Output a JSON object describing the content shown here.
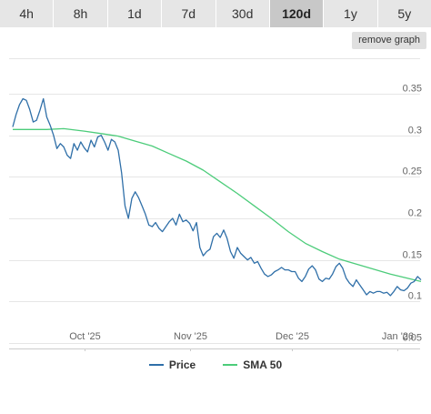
{
  "tabs": [
    {
      "label": "4h",
      "active": false
    },
    {
      "label": "8h",
      "active": false
    },
    {
      "label": "1d",
      "active": false
    },
    {
      "label": "7d",
      "active": false
    },
    {
      "label": "30d",
      "active": false
    },
    {
      "label": "120d",
      "active": true
    },
    {
      "label": "1y",
      "active": false
    },
    {
      "label": "5y",
      "active": false
    }
  ],
  "remove_graph_label": "remove graph",
  "chart_data": {
    "type": "line",
    "x_range": [
      "2025-09-10",
      "2026-01-08"
    ],
    "ylim": [
      0.045,
      0.36
    ],
    "y_ticks": [
      0.05,
      0.1,
      0.15,
      0.2,
      0.25,
      0.3,
      0.35
    ],
    "y_tick_labels": [
      "0.05",
      "0.1",
      "0.15",
      "0.2",
      "0.25",
      "0.3",
      "0.35"
    ],
    "x_ticks": [
      {
        "label": "Oct '25",
        "date": "2025-10-01"
      },
      {
        "label": "Nov '25",
        "date": "2025-11-01"
      },
      {
        "label": "Dec '25",
        "date": "2025-12-01"
      },
      {
        "label": "Jan '26",
        "date": "2026-01-01"
      }
    ],
    "grid": true,
    "legend_position": "bottom-center",
    "series": [
      {
        "name": "Price",
        "color": "#2f6fa8",
        "points": [
          [
            "2025-09-10",
            0.31
          ],
          [
            "2025-09-11",
            0.325
          ],
          [
            "2025-09-12",
            0.337
          ],
          [
            "2025-09-13",
            0.344
          ],
          [
            "2025-09-14",
            0.342
          ],
          [
            "2025-09-15",
            0.331
          ],
          [
            "2025-09-16",
            0.316
          ],
          [
            "2025-09-17",
            0.318
          ],
          [
            "2025-09-18",
            0.33
          ],
          [
            "2025-09-19",
            0.344
          ],
          [
            "2025-09-20",
            0.322
          ],
          [
            "2025-09-21",
            0.312
          ],
          [
            "2025-09-22",
            0.3
          ],
          [
            "2025-09-23",
            0.284
          ],
          [
            "2025-09-24",
            0.29
          ],
          [
            "2025-09-25",
            0.286
          ],
          [
            "2025-09-26",
            0.276
          ],
          [
            "2025-09-27",
            0.272
          ],
          [
            "2025-09-28",
            0.29
          ],
          [
            "2025-09-29",
            0.282
          ],
          [
            "2025-09-30",
            0.292
          ],
          [
            "2025-10-01",
            0.285
          ],
          [
            "2025-10-02",
            0.28
          ],
          [
            "2025-10-03",
            0.294
          ],
          [
            "2025-10-04",
            0.286
          ],
          [
            "2025-10-05",
            0.298
          ],
          [
            "2025-10-06",
            0.3
          ],
          [
            "2025-10-07",
            0.292
          ],
          [
            "2025-10-08",
            0.282
          ],
          [
            "2025-10-09",
            0.295
          ],
          [
            "2025-10-10",
            0.292
          ],
          [
            "2025-10-11",
            0.282
          ],
          [
            "2025-10-12",
            0.255
          ],
          [
            "2025-10-13",
            0.215
          ],
          [
            "2025-10-14",
            0.2
          ],
          [
            "2025-10-15",
            0.224
          ],
          [
            "2025-10-16",
            0.232
          ],
          [
            "2025-10-17",
            0.225
          ],
          [
            "2025-10-18",
            0.215
          ],
          [
            "2025-10-19",
            0.205
          ],
          [
            "2025-10-20",
            0.192
          ],
          [
            "2025-10-21",
            0.19
          ],
          [
            "2025-10-22",
            0.195
          ],
          [
            "2025-10-23",
            0.188
          ],
          [
            "2025-10-24",
            0.184
          ],
          [
            "2025-10-25",
            0.19
          ],
          [
            "2025-10-26",
            0.196
          ],
          [
            "2025-10-27",
            0.2
          ],
          [
            "2025-10-28",
            0.192
          ],
          [
            "2025-10-29",
            0.205
          ],
          [
            "2025-10-30",
            0.196
          ],
          [
            "2025-10-31",
            0.198
          ],
          [
            "2025-11-01",
            0.194
          ],
          [
            "2025-11-02",
            0.185
          ],
          [
            "2025-11-03",
            0.195
          ],
          [
            "2025-11-04",
            0.165
          ],
          [
            "2025-11-05",
            0.155
          ],
          [
            "2025-11-06",
            0.16
          ],
          [
            "2025-11-07",
            0.163
          ],
          [
            "2025-11-08",
            0.178
          ],
          [
            "2025-11-09",
            0.182
          ],
          [
            "2025-11-10",
            0.177
          ],
          [
            "2025-11-11",
            0.186
          ],
          [
            "2025-11-12",
            0.176
          ],
          [
            "2025-11-13",
            0.16
          ],
          [
            "2025-11-14",
            0.152
          ],
          [
            "2025-11-15",
            0.165
          ],
          [
            "2025-11-16",
            0.158
          ],
          [
            "2025-11-17",
            0.154
          ],
          [
            "2025-11-18",
            0.15
          ],
          [
            "2025-11-19",
            0.153
          ],
          [
            "2025-11-20",
            0.146
          ],
          [
            "2025-11-21",
            0.148
          ],
          [
            "2025-11-22",
            0.14
          ],
          [
            "2025-11-23",
            0.133
          ],
          [
            "2025-11-24",
            0.13
          ],
          [
            "2025-11-25",
            0.132
          ],
          [
            "2025-11-26",
            0.136
          ],
          [
            "2025-11-27",
            0.138
          ],
          [
            "2025-11-28",
            0.141
          ],
          [
            "2025-11-29",
            0.138
          ],
          [
            "2025-11-30",
            0.138
          ],
          [
            "2025-12-01",
            0.136
          ],
          [
            "2025-12-02",
            0.136
          ],
          [
            "2025-12-03",
            0.128
          ],
          [
            "2025-12-04",
            0.124
          ],
          [
            "2025-12-05",
            0.13
          ],
          [
            "2025-12-06",
            0.139
          ],
          [
            "2025-12-07",
            0.143
          ],
          [
            "2025-12-08",
            0.138
          ],
          [
            "2025-12-09",
            0.127
          ],
          [
            "2025-12-10",
            0.124
          ],
          [
            "2025-12-11",
            0.128
          ],
          [
            "2025-12-12",
            0.127
          ],
          [
            "2025-12-13",
            0.133
          ],
          [
            "2025-12-14",
            0.142
          ],
          [
            "2025-12-15",
            0.146
          ],
          [
            "2025-12-16",
            0.14
          ],
          [
            "2025-12-17",
            0.128
          ],
          [
            "2025-12-18",
            0.122
          ],
          [
            "2025-12-19",
            0.118
          ],
          [
            "2025-12-20",
            0.126
          ],
          [
            "2025-12-21",
            0.12
          ],
          [
            "2025-12-22",
            0.114
          ],
          [
            "2025-12-23",
            0.108
          ],
          [
            "2025-12-24",
            0.112
          ],
          [
            "2025-12-25",
            0.11
          ],
          [
            "2025-12-26",
            0.112
          ],
          [
            "2025-12-27",
            0.112
          ],
          [
            "2025-12-28",
            0.11
          ],
          [
            "2025-12-29",
            0.111
          ],
          [
            "2025-12-30",
            0.107
          ],
          [
            "2025-12-31",
            0.112
          ],
          [
            "2026-01-01",
            0.118
          ],
          [
            "2026-01-02",
            0.114
          ],
          [
            "2026-01-03",
            0.113
          ],
          [
            "2026-01-04",
            0.116
          ],
          [
            "2026-01-05",
            0.122
          ],
          [
            "2026-01-06",
            0.124
          ],
          [
            "2026-01-07",
            0.13
          ],
          [
            "2026-01-08",
            0.126
          ]
        ]
      },
      {
        "name": "SMA 50",
        "color": "#4ccc7a",
        "points": [
          [
            "2025-09-10",
            0.307
          ],
          [
            "2025-09-15",
            0.307
          ],
          [
            "2025-09-20",
            0.307
          ],
          [
            "2025-09-25",
            0.308
          ],
          [
            "2025-10-01",
            0.305
          ],
          [
            "2025-10-06",
            0.302
          ],
          [
            "2025-10-11",
            0.299
          ],
          [
            "2025-10-16",
            0.293
          ],
          [
            "2025-10-21",
            0.287
          ],
          [
            "2025-10-26",
            0.278
          ],
          [
            "2025-10-31",
            0.269
          ],
          [
            "2025-11-05",
            0.258
          ],
          [
            "2025-11-10",
            0.244
          ],
          [
            "2025-11-15",
            0.23
          ],
          [
            "2025-11-20",
            0.215
          ],
          [
            "2025-11-25",
            0.2
          ],
          [
            "2025-11-30",
            0.184
          ],
          [
            "2025-12-05",
            0.17
          ],
          [
            "2025-12-10",
            0.16
          ],
          [
            "2025-12-15",
            0.151
          ],
          [
            "2025-12-20",
            0.145
          ],
          [
            "2025-12-25",
            0.139
          ],
          [
            "2025-12-30",
            0.133
          ],
          [
            "2026-01-04",
            0.128
          ],
          [
            "2026-01-08",
            0.124
          ]
        ]
      }
    ]
  }
}
